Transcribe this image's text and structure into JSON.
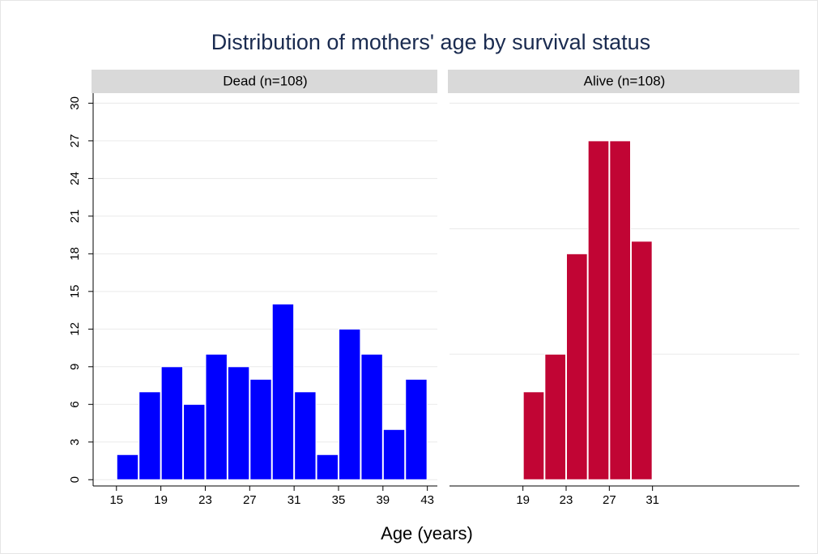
{
  "chart_data": [
    {
      "type": "histogram",
      "title": "Distribution of mothers' age by survival status",
      "x_label": "Age (years)",
      "panel_title": "Dead (n=108)",
      "color": "#0000ff",
      "bins": [
        15,
        17,
        19,
        21,
        23,
        25,
        27,
        29,
        31,
        33,
        35,
        37,
        39,
        41,
        43
      ],
      "values": [
        2,
        7,
        9,
        6,
        10,
        9,
        8,
        14,
        7,
        2,
        12,
        10,
        4,
        8
      ],
      "xlim": [
        12.9,
        43.9
      ],
      "xticks": [
        15,
        19,
        23,
        27,
        31,
        35,
        39,
        43
      ],
      "ylim": [
        -0.5,
        30.8
      ],
      "yticks": [
        0,
        3,
        6,
        9,
        12,
        15,
        18,
        21,
        24,
        27,
        30
      ],
      "grid": true
    },
    {
      "type": "histogram",
      "panel_title": "Alive (n=108)",
      "color": "#c10534",
      "bins": [
        19,
        21,
        23,
        25,
        27,
        29,
        31
      ],
      "values": [
        7,
        10,
        18,
        27,
        27,
        19
      ],
      "xlim": [
        12.2,
        44.6
      ],
      "xticks": [
        19,
        23,
        27,
        31
      ],
      "ylim": [
        -0.5,
        30.8
      ],
      "gridlines": [
        10,
        20,
        30
      ],
      "grid": true
    }
  ]
}
